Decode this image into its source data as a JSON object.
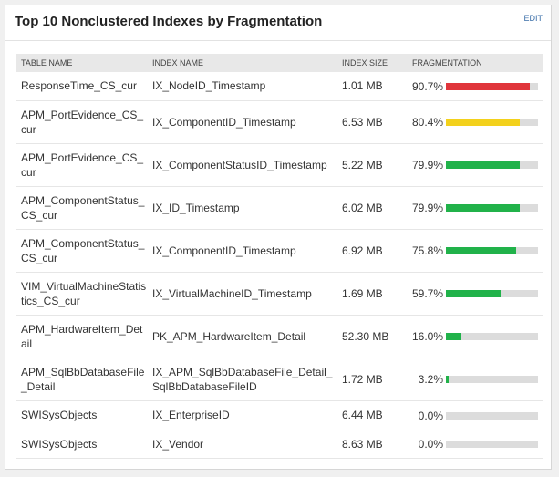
{
  "header": {
    "title": "Top 10 Nonclustered Indexes by Fragmentation",
    "action": "EDIT"
  },
  "table": {
    "columns": [
      "TABLE NAME",
      "INDEX NAME",
      "INDEX SIZE",
      "FRAGMENTATION"
    ],
    "rows": [
      {
        "table_name": "ResponseTime_CS_cur",
        "index_name": "IX_NodeID_Timestamp",
        "index_size": "1.01 MB",
        "fragmentation": {
          "value": 90.7,
          "label": "90.7%"
        },
        "color": "#e0353b"
      },
      {
        "table_name": "APM_PortEvidence_CS_cur",
        "index_name": "IX_ComponentID_Timestamp",
        "index_size": "6.53 MB",
        "fragmentation": {
          "value": 80.4,
          "label": "80.4%"
        },
        "color": "#f3d11c"
      },
      {
        "table_name": "APM_PortEvidence_CS_cur",
        "index_name": "IX_ComponentStatusID_Timestamp",
        "index_size": "5.22 MB",
        "fragmentation": {
          "value": 79.9,
          "label": "79.9%"
        },
        "color": "#21b24a"
      },
      {
        "table_name": "APM_ComponentStatus_CS_cur",
        "index_name": "IX_ID_Timestamp",
        "index_size": "6.02 MB",
        "fragmentation": {
          "value": 79.9,
          "label": "79.9%"
        },
        "color": "#21b24a"
      },
      {
        "table_name": "APM_ComponentStatus_CS_cur",
        "index_name": "IX_ComponentID_Timestamp",
        "index_size": "6.92 MB",
        "fragmentation": {
          "value": 75.8,
          "label": "75.8%"
        },
        "color": "#21b24a"
      },
      {
        "table_name": "VIM_VirtualMachineStatistics_CS_cur",
        "index_name": "IX_VirtualMachineID_Timestamp",
        "index_size": "1.69 MB",
        "fragmentation": {
          "value": 59.7,
          "label": "59.7%"
        },
        "color": "#21b24a"
      },
      {
        "table_name": "APM_HardwareItem_Detail",
        "index_name": "PK_APM_HardwareItem_Detail",
        "index_size": "52.30 MB",
        "fragmentation": {
          "value": 16.0,
          "label": "16.0%"
        },
        "color": "#21b24a"
      },
      {
        "table_name": "APM_SqlBbDatabaseFile_Detail",
        "index_name": "IX_APM_SqlBbDatabaseFile_Detail_SqlBbDatabaseFileID",
        "index_size": "1.72 MB",
        "fragmentation": {
          "value": 3.2,
          "label": "3.2%"
        },
        "color": "#21b24a"
      },
      {
        "table_name": "SWISysObjects",
        "index_name": "IX_EnterpriseID",
        "index_size": "6.44 MB",
        "fragmentation": {
          "value": 0.0,
          "label": "0.0%"
        },
        "color": "#21b24a"
      },
      {
        "table_name": "SWISysObjects",
        "index_name": "IX_Vendor",
        "index_size": "8.63 MB",
        "fragmentation": {
          "value": 0.0,
          "label": "0.0%"
        },
        "color": "#21b24a"
      }
    ]
  }
}
